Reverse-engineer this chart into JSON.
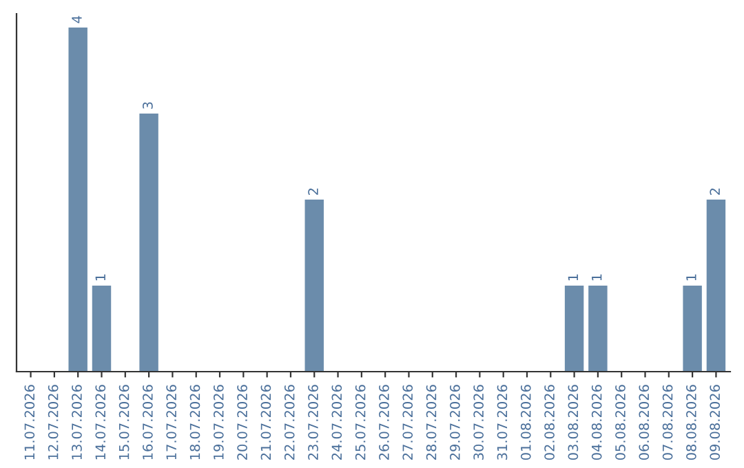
{
  "chart_data": {
    "type": "bar",
    "categories": [
      "11.07.2026",
      "12.07.2026",
      "13.07.2026",
      "14.07.2026",
      "15.07.2026",
      "16.07.2026",
      "17.07.2026",
      "18.07.2026",
      "19.07.2026",
      "20.07.2026",
      "21.07.2026",
      "22.07.2026",
      "23.07.2026",
      "24.07.2026",
      "25.07.2026",
      "26.07.2026",
      "27.07.2026",
      "28.07.2026",
      "29.07.2026",
      "30.07.2026",
      "31.07.2026",
      "01.08.2026",
      "02.08.2026",
      "03.08.2026",
      "04.08.2026",
      "05.08.2026",
      "06.08.2026",
      "07.08.2026",
      "08.08.2026",
      "09.08.2026"
    ],
    "values": [
      0,
      0,
      4,
      1,
      0,
      3,
      0,
      0,
      0,
      0,
      0,
      0,
      2,
      0,
      0,
      0,
      0,
      0,
      0,
      0,
      0,
      0,
      0,
      1,
      1,
      0,
      0,
      0,
      1,
      2
    ],
    "value_labels": [
      null,
      null,
      "4",
      "1",
      null,
      "3",
      null,
      null,
      null,
      null,
      null,
      null,
      "2",
      null,
      null,
      null,
      null,
      null,
      null,
      null,
      null,
      null,
      null,
      "1",
      "1",
      null,
      null,
      null,
      "1",
      "2"
    ],
    "color": "#6b8cab",
    "tick_labels": "x",
    "grid": false,
    "legend": false
  }
}
